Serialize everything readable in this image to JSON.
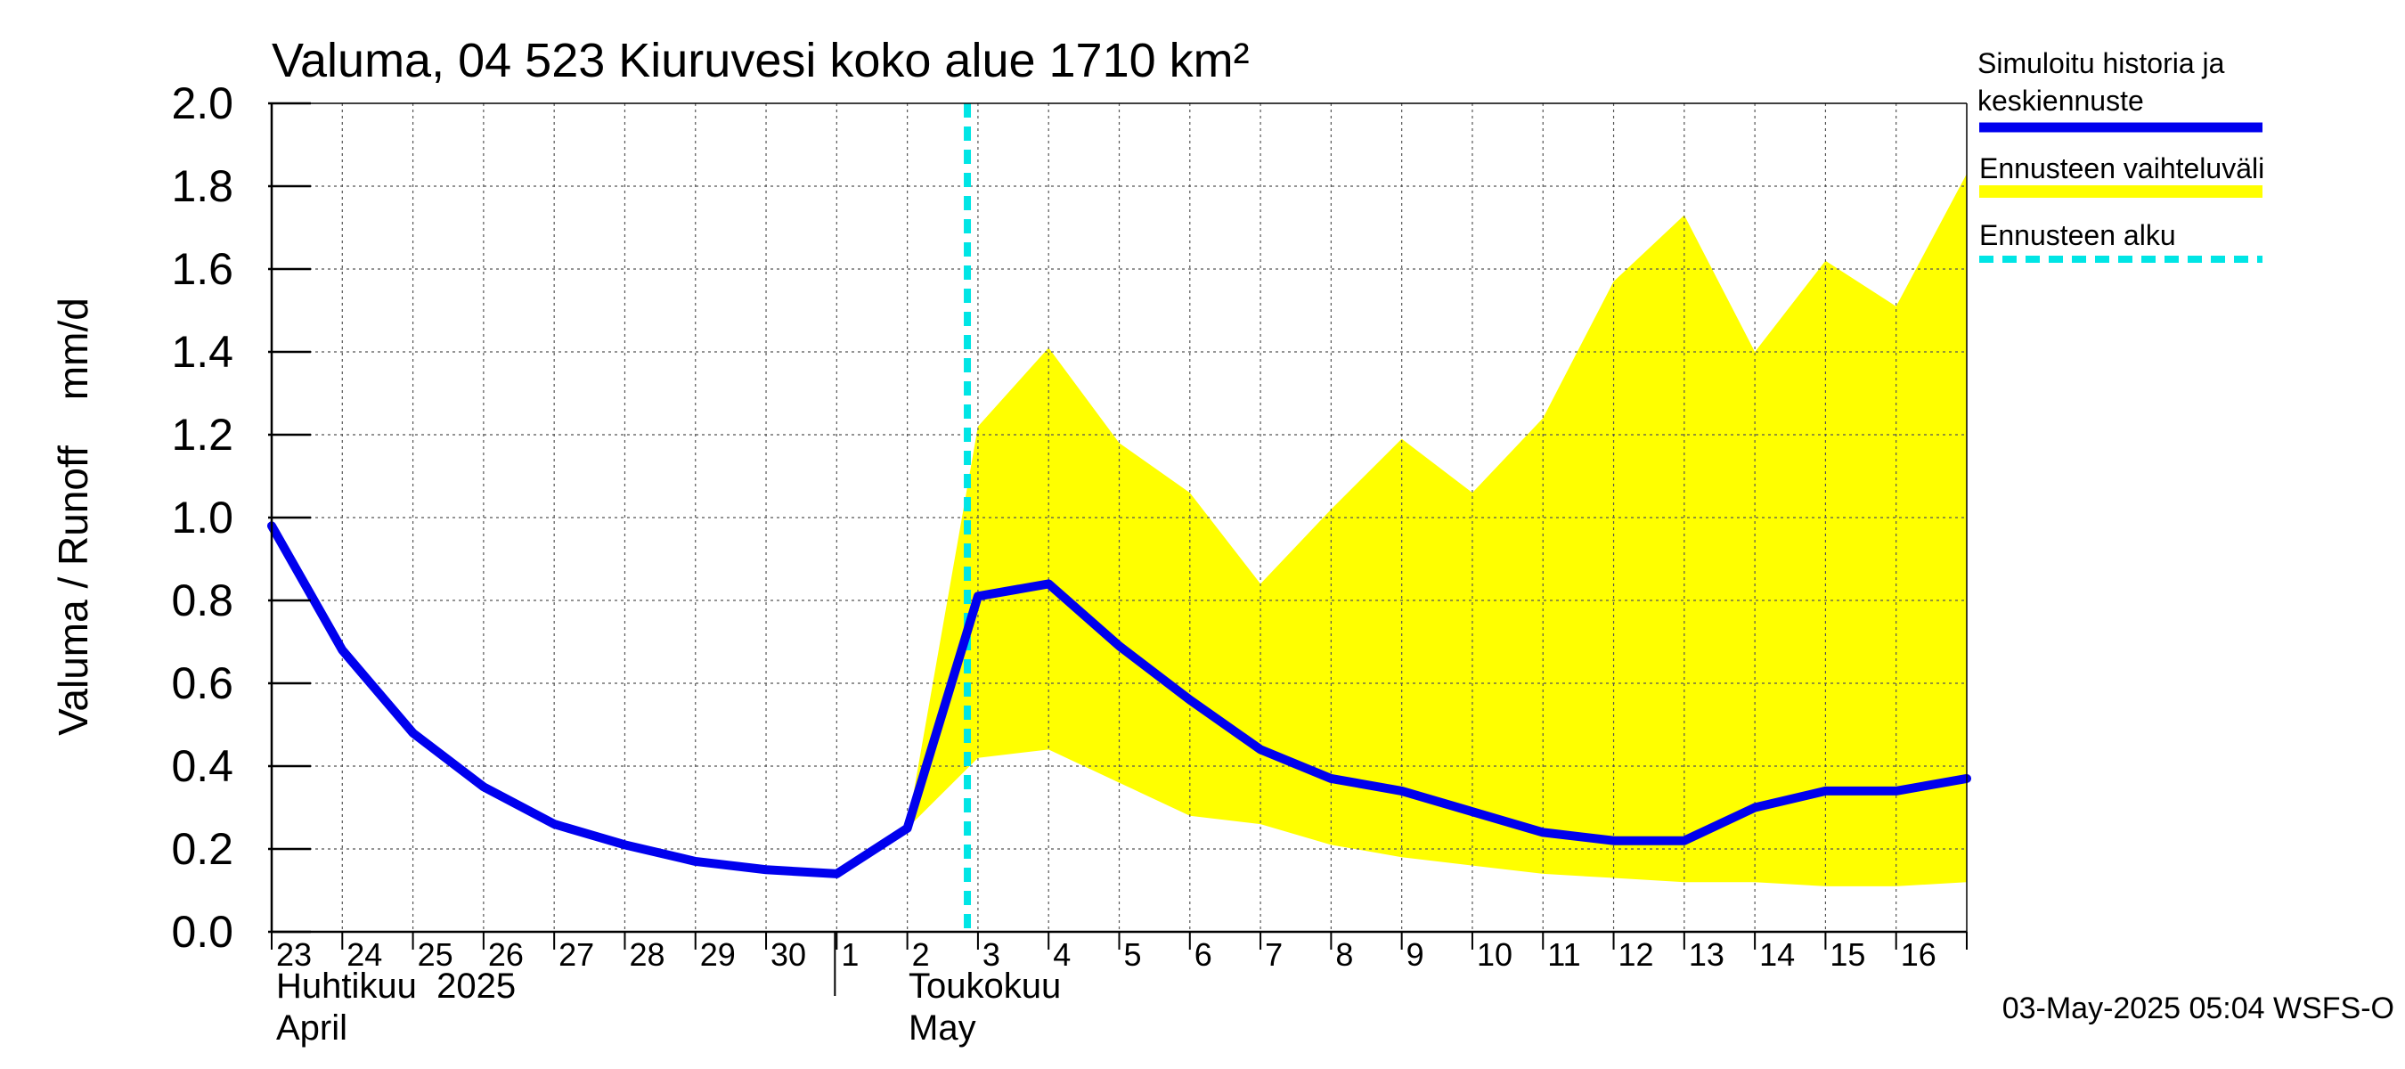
{
  "chart_data": {
    "type": "line",
    "title": "Valuma, 04 523 Kiuruvesi koko alue 1710 km²",
    "ylabel": "Valuma / Runoff    mm/d",
    "ylim": [
      0,
      2.0
    ],
    "yticks": [
      "0.0",
      "0.2",
      "0.4",
      "0.6",
      "0.8",
      "1.0",
      "1.2",
      "1.4",
      "1.6",
      "1.8",
      "2.0"
    ],
    "x_day_labels": [
      "23",
      "24",
      "25",
      "26",
      "27",
      "28",
      "29",
      "30",
      "1",
      "2",
      "3",
      "4",
      "5",
      "6",
      "7",
      "8",
      "9",
      "10",
      "11",
      "12",
      "13",
      "14",
      "15",
      "16"
    ],
    "month_labels": [
      {
        "line1": "Huhtikuu  2025",
        "line2": "April"
      },
      {
        "line1": "Toukokuu",
        "line2": "May"
      }
    ],
    "legend": [
      {
        "label": "Simuloitu historia ja keskiennuste",
        "color": "#0000ee",
        "style": "solid"
      },
      {
        "label": "Ennusteen vaihteluväli",
        "color": "#ffff00",
        "style": "band"
      },
      {
        "label": "Ennusteen alku",
        "color": "#00e5e5",
        "style": "dashed"
      }
    ],
    "series": [
      {
        "name": "Simuloitu historia ja keskiennuste",
        "x": [
          "2025-04-23",
          "2025-04-24",
          "2025-04-25",
          "2025-04-26",
          "2025-04-27",
          "2025-04-28",
          "2025-04-29",
          "2025-04-30",
          "2025-05-01",
          "2025-05-02",
          "2025-05-03",
          "2025-05-04",
          "2025-05-05",
          "2025-05-06",
          "2025-05-07",
          "2025-05-08",
          "2025-05-09",
          "2025-05-10",
          "2025-05-11",
          "2025-05-12",
          "2025-05-13",
          "2025-05-14",
          "2025-05-15",
          "2025-05-16",
          "2025-05-17"
        ],
        "values": [
          0.98,
          0.68,
          0.48,
          0.35,
          0.26,
          0.21,
          0.17,
          0.15,
          0.14,
          0.25,
          0.81,
          0.84,
          0.69,
          0.56,
          0.44,
          0.37,
          0.34,
          0.29,
          0.24,
          0.22,
          0.22,
          0.3,
          0.34,
          0.34,
          0.37
        ]
      }
    ],
    "band": {
      "name": "Ennusteen vaihteluväli",
      "x": [
        "2025-05-02",
        "2025-05-03",
        "2025-05-04",
        "2025-05-05",
        "2025-05-06",
        "2025-05-07",
        "2025-05-08",
        "2025-05-09",
        "2025-05-10",
        "2025-05-11",
        "2025-05-12",
        "2025-05-13",
        "2025-05-14",
        "2025-05-15",
        "2025-05-16",
        "2025-05-17"
      ],
      "upper": [
        0.25,
        1.22,
        1.41,
        1.18,
        1.06,
        0.84,
        1.02,
        1.19,
        1.06,
        1.24,
        1.57,
        1.73,
        1.4,
        1.62,
        1.51,
        1.83
      ],
      "lower": [
        0.25,
        0.42,
        0.44,
        0.36,
        0.28,
        0.26,
        0.21,
        0.18,
        0.16,
        0.14,
        0.13,
        0.12,
        0.12,
        0.11,
        0.11,
        0.12
      ]
    },
    "forecast_start": "2025-05-03",
    "grid": true,
    "legend_position": "right"
  },
  "footer": {
    "timestamp": "03-May-2025 05:04 WSFS-O"
  }
}
